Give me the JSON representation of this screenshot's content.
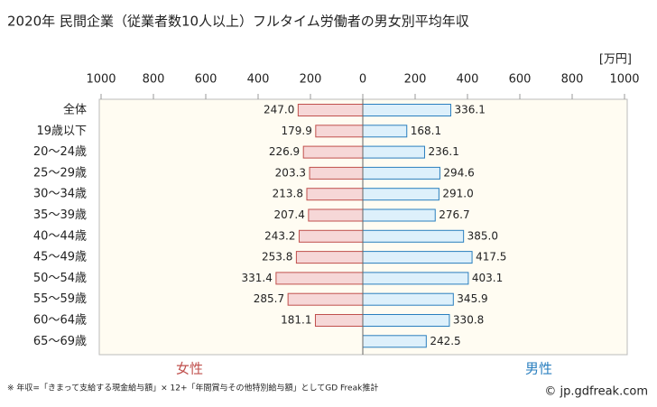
{
  "chart_data": {
    "type": "butterfly",
    "title": "2020年 民間企業（従業者数10人以上）フルタイム労働者の男女別平均年収",
    "unit_label": "[万円]",
    "categories": [
      "全体",
      "19歳以下",
      "20～24歳",
      "25～29歳",
      "30～34歳",
      "35～39歳",
      "40～44歳",
      "45～49歳",
      "50～54歳",
      "55～59歳",
      "60～64歳",
      "65～69歳"
    ],
    "series": [
      {
        "name": "女性",
        "side": "left",
        "color": "#f6d7d7",
        "edge": "#c0504d",
        "text_color": "#c0504d",
        "values": [
          247.0,
          179.9,
          226.9,
          203.3,
          213.8,
          207.4,
          243.2,
          253.8,
          331.4,
          285.7,
          181.1,
          null
        ],
        "value_labels": [
          "247.0",
          "179.9",
          "226.9",
          "203.3",
          "213.8",
          "207.4",
          "243.2",
          "253.8",
          "331.4",
          "285.7",
          "181.1",
          null
        ]
      },
      {
        "name": "男性",
        "side": "right",
        "color": "#ddf0fb",
        "edge": "#2a7fbf",
        "text_color": "#2a7fbf",
        "values": [
          336.1,
          168.1,
          236.1,
          294.6,
          291.0,
          276.7,
          385.0,
          417.5,
          403.1,
          345.9,
          330.8,
          242.5
        ],
        "value_labels": [
          "336.1",
          "168.1",
          "236.1",
          "294.6",
          "291.0",
          "276.7",
          "385.0",
          "417.5",
          "403.1",
          "345.9",
          "330.8",
          "242.5"
        ]
      }
    ],
    "xlim": [
      0,
      1000
    ],
    "xticks_left": [
      1000,
      800,
      600,
      400,
      200
    ],
    "xticks_right": [
      0,
      200,
      400,
      600,
      800,
      1000
    ],
    "footnote": "※ 年収=「きまって支給する現金給与額」× 12+「年間賞与その他特別給与額」としてGD Freak推計",
    "credit": "© jp.gdfreak.com"
  }
}
